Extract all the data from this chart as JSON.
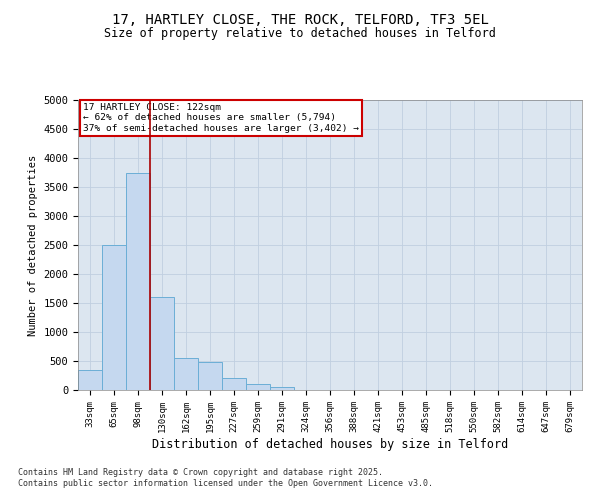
{
  "title_line1": "17, HARTLEY CLOSE, THE ROCK, TELFORD, TF3 5EL",
  "title_line2": "Size of property relative to detached houses in Telford",
  "xlabel": "Distribution of detached houses by size in Telford",
  "ylabel": "Number of detached properties",
  "categories": [
    "33sqm",
    "65sqm",
    "98sqm",
    "130sqm",
    "162sqm",
    "195sqm",
    "227sqm",
    "259sqm",
    "291sqm",
    "324sqm",
    "356sqm",
    "388sqm",
    "421sqm",
    "453sqm",
    "485sqm",
    "518sqm",
    "550sqm",
    "582sqm",
    "614sqm",
    "647sqm",
    "679sqm"
  ],
  "values": [
    350,
    2500,
    3750,
    1600,
    550,
    480,
    200,
    100,
    50,
    0,
    0,
    0,
    0,
    0,
    0,
    0,
    0,
    0,
    0,
    0,
    0
  ],
  "bar_color": "#c5d8ef",
  "bar_edge_color": "#6baed6",
  "vline_color": "#aa0000",
  "annotation_line1": "17 HARTLEY CLOSE: 122sqm",
  "annotation_line2": "← 62% of detached houses are smaller (5,794)",
  "annotation_line3": "37% of semi-detached houses are larger (3,402) →",
  "annotation_box_color": "#cc0000",
  "ylim": [
    0,
    5000
  ],
  "yticks": [
    0,
    500,
    1000,
    1500,
    2000,
    2500,
    3000,
    3500,
    4000,
    4500,
    5000
  ],
  "grid_color": "#c0cfe0",
  "bg_color": "#dce6f0",
  "footnote_line1": "Contains HM Land Registry data © Crown copyright and database right 2025.",
  "footnote_line2": "Contains public sector information licensed under the Open Government Licence v3.0."
}
